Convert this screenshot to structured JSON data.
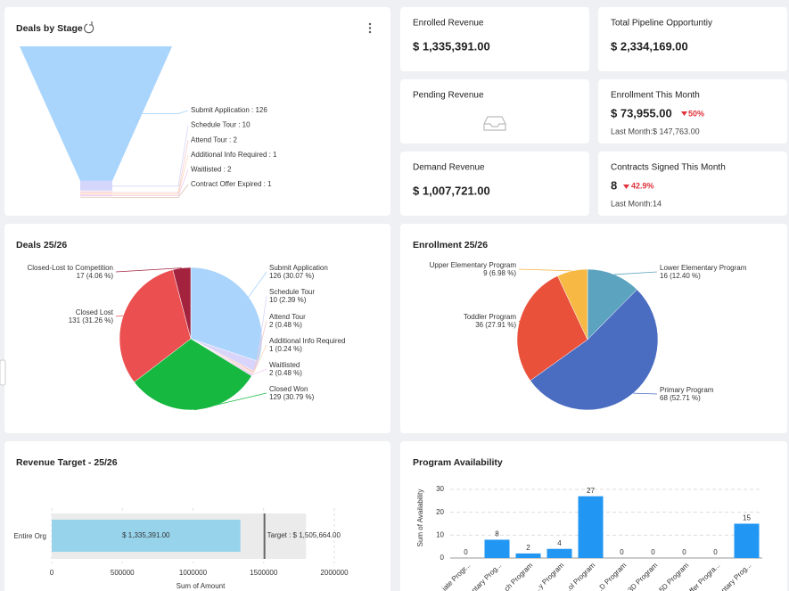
{
  "cards": [
    {
      "title": "Enrolled Revenue",
      "value": "$ 1,335,391.00"
    },
    {
      "title": "Total Pipeline Opportuntiy",
      "value": "$ 2,334,169.00"
    },
    {
      "title": "Pending Revenue"
    },
    {
      "title": "Enrollment This Month",
      "value": "$ 73,955.00",
      "change": "50%",
      "last_month": "Last Month:$ 147,763.00"
    },
    {
      "title": "Demand Revenue",
      "value": "$ 1,007,721.00"
    },
    {
      "title": "Contracts Signed This Month",
      "value": "8",
      "change": "42.9%",
      "last_month": "Last Month:14"
    }
  ],
  "chart_data": [
    {
      "type": "funnel",
      "title": "Deals by Stage",
      "categories": [
        "Submit Application",
        "Schedule Tour",
        "Attend Tour",
        "Additional Info Required",
        "Waitlisted",
        "Contract Offer Expired"
      ],
      "values": [
        126,
        10,
        2,
        1,
        2,
        1
      ],
      "value_labels": [
        "Submit Application : 126",
        "Schedule Tour : 10",
        "Attend Tour : 2",
        "Additional Info Required : 1",
        "Waitlisted : 2",
        "Contract Offer Expired : 1"
      ],
      "colors": [
        "#a9d4fb",
        "#d4d6fb",
        "#f7c7cc",
        "#fbd7b8",
        "#f0c8ee",
        "#d9c3b0"
      ]
    },
    {
      "type": "pie",
      "title": "Deals 25/26",
      "categories": [
        "Submit Application",
        "Schedule Tour",
        "Attend Tour",
        "Additional Info Required",
        "Waitlisted",
        "Closed Won",
        "Closed Lost",
        "Closed-Lost to Competition"
      ],
      "values": [
        126,
        10,
        2,
        1,
        2,
        129,
        131,
        17
      ],
      "value_labels": [
        "126 (30.07 %)",
        "10 (2.39 %)",
        "2 (0.48 %)",
        "1 (0.24 %)",
        "2 (0.48 %)",
        "129 (30.79 %)",
        "131 (31.26 %)",
        "17 (4.06 %)"
      ],
      "colors": [
        "#aad4fb",
        "#d8d4fa",
        "#f6c6ca",
        "#fbd7b6",
        "#efc9ef",
        "#16b840",
        "#eb4f4f",
        "#a3233f"
      ]
    },
    {
      "type": "pie",
      "title": "Enrollment 25/26",
      "categories": [
        "Lower Elementary Program",
        "Primary Program",
        "Toddler Program",
        "Upper Elementary Program"
      ],
      "values": [
        16,
        68,
        36,
        9
      ],
      "value_labels": [
        "16 (12.40 %)",
        "68 (52.71 %)",
        "36 (27.91 %)",
        "9 (6.98 %)"
      ],
      "colors": [
        "#5ba3bf",
        "#4a6cc1",
        "#e9513b",
        "#f7b844"
      ]
    },
    {
      "type": "bullet",
      "title": "Revenue Target - 25/26",
      "categories": [
        "Entire Org"
      ],
      "values": [
        1335391
      ],
      "value_labels": [
        "$ 1,335,391.00"
      ],
      "target": 1505664,
      "target_label": "Target : $ 1,505,664.00",
      "range": 1800000,
      "xlim": [
        0,
        2000000
      ],
      "xticks": [
        0,
        500000,
        1000000,
        1500000,
        2000000
      ],
      "x_label": "Sum of Amount",
      "color": "#97d4ec",
      "grid": true
    },
    {
      "type": "bar",
      "title": "Program Availability",
      "categories": [
        "...iate Progr...",
        "...ntary Prog...",
        "...ch Program",
        "...y Program",
        "...ol Program",
        "...D Program",
        "...3D Program",
        "...5D Program",
        "...ffer Progra...",
        "...ntary Prog..."
      ],
      "values": [
        0,
        8,
        2,
        4,
        27,
        0,
        0,
        0,
        0,
        15
      ],
      "ylim": [
        0,
        30
      ],
      "yticks": [
        0,
        10,
        20,
        30
      ],
      "y_label": "Sum of Availability",
      "color": "#2196f3",
      "grid": true
    }
  ]
}
